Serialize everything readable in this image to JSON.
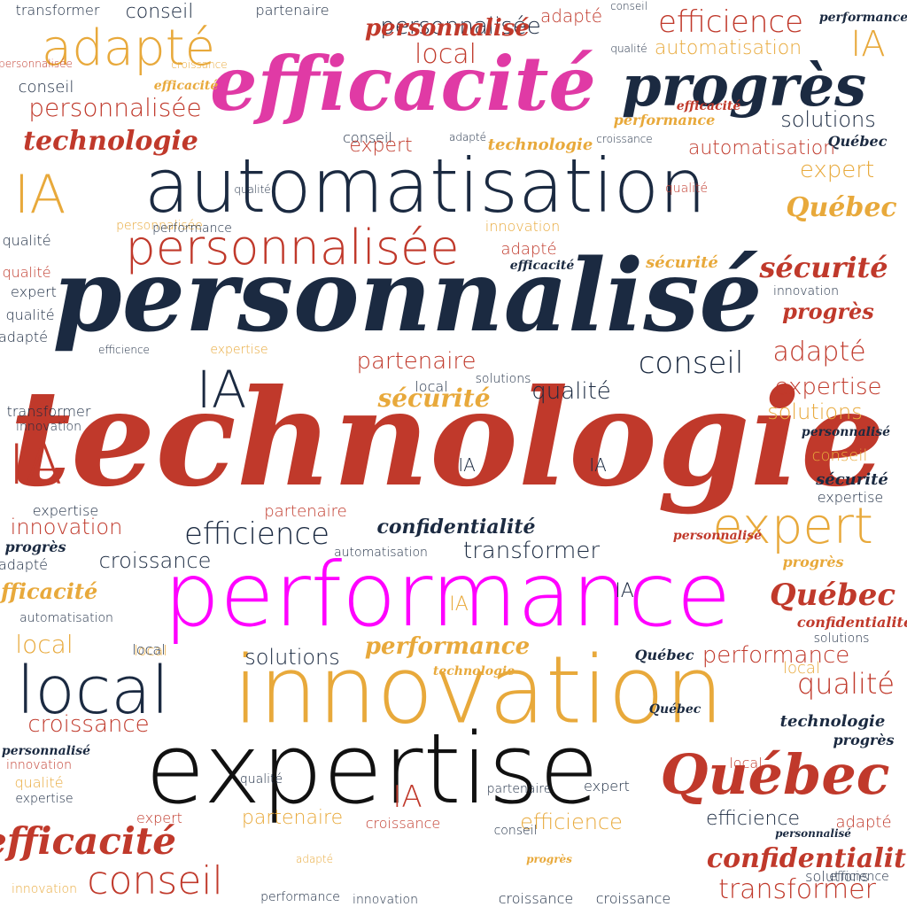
{
  "words": {
    "technologie": "technologie",
    "personnalise": "personnalisé",
    "performance": "performance",
    "innovation": "innovation",
    "expertise": "expertise",
    "automatisation": "automatisation",
    "efficacite": "efficacité",
    "progres": "progrès",
    "personnalisee": "personnalisée",
    "quebec": "Québec",
    "local": "local",
    "adapte": "adapté",
    "ia": "IA",
    "expert": "expert",
    "conseil": "conseil",
    "efficience": "efficience",
    "securite": "sécurité",
    "confidentialite": "confidentialité",
    "croissance": "croissance",
    "transformer": "transformer",
    "qualite": "qualité",
    "solutions": "solutions",
    "partenaire": "partenaire"
  },
  "palette": {
    "red": "#c0392b",
    "orange": "#e8a93b",
    "navy": "#1b2a41",
    "black": "#111111",
    "pink": "#e03aa5",
    "magenta": "#ff00ff"
  }
}
